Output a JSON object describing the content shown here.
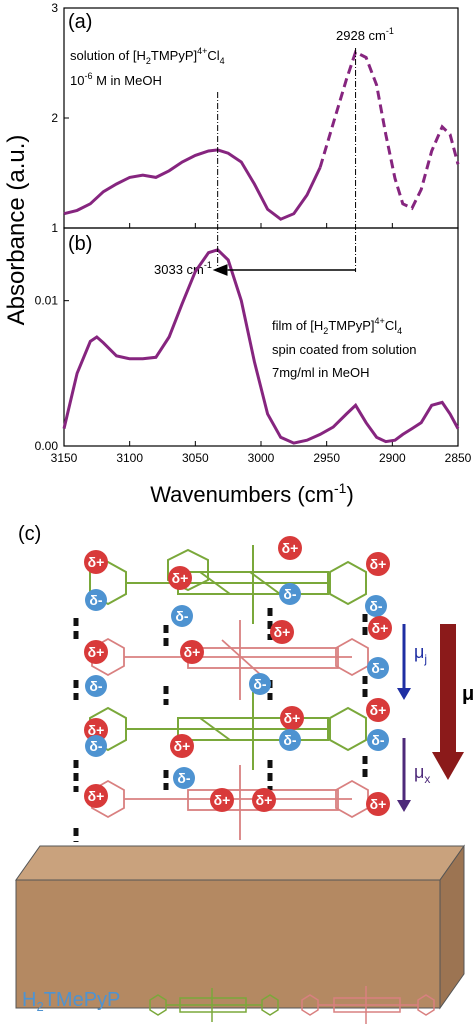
{
  "figure": {
    "shared_ylabel": "Absorbance (a.u.)",
    "xlabel": "Wavenumbers (cm",
    "xlabel_sup": "-1",
    "xlabel_close": ")",
    "colors": {
      "curve": "#86257f",
      "arrow_red": "#8b1a1a",
      "arrow_blue": "#1f2fa3",
      "arrow_purple": "#4e2a7a",
      "green": "#7aa83a",
      "pink": "#d98080",
      "substrate": "#b48962",
      "delta_plus": "#d83a3a",
      "delta_minus": "#4e93d1",
      "legend_text": "#4e93d1"
    }
  },
  "chart_data": [
    {
      "type": "line",
      "panel": "(a)",
      "xlim": [
        3150,
        2850
      ],
      "ylim": [
        1,
        3
      ],
      "yticks": [
        "1",
        "2",
        "3"
      ],
      "annotation_peak": "2928 cm",
      "annotation_peak_sup": "-1",
      "text_line1_a": "solution of [H",
      "text_line1_sub": "2",
      "text_line1_b": "TMPyP]",
      "text_line1_sup": "4+",
      "text_line1_c": "Cl",
      "text_line1_sub2": "4",
      "text_line2_a": "10",
      "text_line2_sup": "-6",
      "text_line2_b": " M in MeOH",
      "markers": [
        3033,
        2928
      ],
      "x": [
        3150,
        3140,
        3130,
        3120,
        3110,
        3100,
        3090,
        3080,
        3070,
        3060,
        3050,
        3040,
        3033,
        3025,
        3015,
        3005,
        2995,
        2985,
        2975,
        2965,
        2955,
        2945,
        2935,
        2928,
        2920,
        2912,
        2905,
        2898,
        2892,
        2885,
        2878,
        2870,
        2862,
        2856,
        2850
      ],
      "y": [
        1.13,
        1.16,
        1.22,
        1.33,
        1.4,
        1.46,
        1.48,
        1.46,
        1.52,
        1.6,
        1.66,
        1.7,
        1.71,
        1.68,
        1.6,
        1.4,
        1.17,
        1.08,
        1.13,
        1.3,
        1.55,
        1.95,
        2.35,
        2.6,
        2.55,
        2.3,
        1.85,
        1.45,
        1.22,
        1.18,
        1.35,
        1.7,
        1.92,
        1.85,
        1.58
      ],
      "dashed_from_x": 2955
    },
    {
      "type": "line",
      "panel": "(b)",
      "xlim": [
        3150,
        2850
      ],
      "ylim": [
        0,
        0.015
      ],
      "yticks": [
        "0.00",
        "0.01"
      ],
      "xticks": [
        3150,
        3100,
        3050,
        3000,
        2950,
        2900,
        2850
      ],
      "annotation_shift": "3033 cm",
      "annotation_shift_sup": "-1",
      "text_line1_a": "film of [H",
      "text_line1_sub": "2",
      "text_line1_b": "TMPyP]",
      "text_line1_sup": "4+",
      "text_line1_c": "Cl",
      "text_line1_sub2": "4",
      "text_line2": "spin coated  from solution",
      "text_line3": "7mg/ml in MeOH",
      "x": [
        3150,
        3140,
        3130,
        3125,
        3120,
        3110,
        3100,
        3090,
        3080,
        3070,
        3060,
        3050,
        3040,
        3033,
        3025,
        3015,
        3005,
        2995,
        2985,
        2975,
        2965,
        2955,
        2945,
        2935,
        2928,
        2920,
        2912,
        2905,
        2898,
        2892,
        2885,
        2878,
        2870,
        2862,
        2856,
        2850
      ],
      "y": [
        0.0012,
        0.005,
        0.0072,
        0.0075,
        0.0071,
        0.0062,
        0.006,
        0.006,
        0.0061,
        0.0075,
        0.0098,
        0.012,
        0.0133,
        0.0135,
        0.0128,
        0.01,
        0.0058,
        0.0022,
        0.0006,
        0.0002,
        0.0004,
        0.0008,
        0.0013,
        0.0022,
        0.0028,
        0.0016,
        0.0006,
        0.0003,
        0.0004,
        0.0008,
        0.0012,
        0.0016,
        0.0028,
        0.003,
        0.0022,
        0.0012
      ]
    }
  ],
  "panel_c": {
    "label": "(c)",
    "delta_plus": "δ+",
    "delta_minus": "δ-",
    "mu_j": "μ",
    "mu_j_sub": "j",
    "mu_x": "μ",
    "mu_x_sub": "x",
    "mu_total": "μ",
    "legend_a": "H",
    "legend_sub": "2",
    "legend_b": "TMePyP"
  }
}
